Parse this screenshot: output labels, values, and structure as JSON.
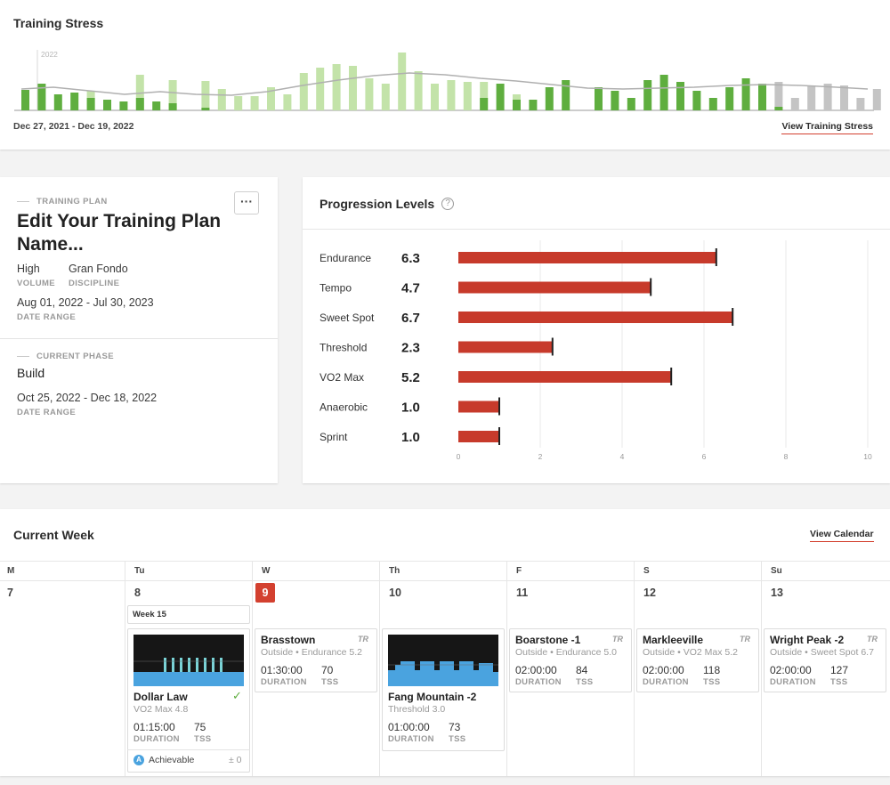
{
  "training_stress": {
    "title": "Training Stress",
    "year_marker": "2022",
    "date_range": "Dec 27, 2021 - Dec 19, 2022",
    "view_link": "View Training Stress"
  },
  "colors": {
    "accent": "#d3402f",
    "completed": "#5fae3f",
    "planned": "#c3e3a9",
    "future": "#c4c4c4",
    "curve": "#b0b0b0"
  },
  "plan": {
    "section_label": "TRAINING PLAN",
    "menu_label": "···",
    "name": "Edit Your Training Plan Name...",
    "volume": "High",
    "volume_label": "VOLUME",
    "discipline": "Gran Fondo",
    "discipline_label": "DISCIPLINE",
    "date_range": "Aug 01, 2022 - Jul 30, 2023",
    "date_range_label": "DATE RANGE",
    "phase_label": "CURRENT PHASE",
    "phase": "Build",
    "phase_dates": "Oct 25, 2022 - Dec 18, 2022",
    "phase_dates_label": "DATE RANGE"
  },
  "progression": {
    "title": "Progression Levels",
    "help": "?",
    "levels": [
      {
        "name": "Endurance",
        "value": "6.3"
      },
      {
        "name": "Tempo",
        "value": "4.7"
      },
      {
        "name": "Sweet Spot",
        "value": "6.7"
      },
      {
        "name": "Threshold",
        "value": "2.3"
      },
      {
        "name": "VO2 Max",
        "value": "5.2"
      },
      {
        "name": "Anaerobic",
        "value": "1.0"
      },
      {
        "name": "Sprint",
        "value": "1.0"
      }
    ],
    "ticks": [
      "0",
      "2",
      "4",
      "6",
      "8",
      "10"
    ]
  },
  "chart_data": {
    "type": "bar",
    "orientation": "horizontal",
    "categories": [
      "Endurance",
      "Tempo",
      "Sweet Spot",
      "Threshold",
      "VO2 Max",
      "Anaerobic",
      "Sprint"
    ],
    "values": [
      6.3,
      4.7,
      6.7,
      2.3,
      5.2,
      1.0,
      1.0
    ],
    "xlim": [
      0,
      10
    ],
    "xticks": [
      0,
      2,
      4,
      6,
      8,
      10
    ],
    "grid": true,
    "color": "#c73a2b"
  },
  "week": {
    "title": "Current Week",
    "view_link": "View Calendar",
    "days": [
      {
        "abbr": "M",
        "num": "7"
      },
      {
        "abbr": "Tu",
        "num": "8"
      },
      {
        "abbr": "W",
        "num": "9"
      },
      {
        "abbr": "Th",
        "num": "10"
      },
      {
        "abbr": "F",
        "num": "11"
      },
      {
        "abbr": "S",
        "num": "12"
      },
      {
        "abbr": "Su",
        "num": "13"
      }
    ],
    "week_label": "Week 15",
    "duration_label": "DURATION",
    "tss_label": "TSS",
    "tr_badge": "TR",
    "workouts": [
      {
        "name": "Dollar Law",
        "sub": "VO2 Max 4.8",
        "duration": "01:15:00",
        "tss": "75",
        "status": "Achievable",
        "status_icon": "A",
        "delta": "± 0",
        "check": "✓"
      },
      {
        "name": "Brasstown",
        "sub": "Outside • Endurance 5.2",
        "duration": "01:30:00",
        "tss": "70"
      },
      {
        "name": "Fang Mountain -2",
        "sub": "Threshold 3.0",
        "duration": "01:00:00",
        "tss": "73"
      },
      {
        "name": "Boarstone -1",
        "sub": "Outside • Endurance 5.0",
        "duration": "02:00:00",
        "tss": "84"
      },
      {
        "name": "Markleeville",
        "sub": "Outside • VO2 Max 5.2",
        "duration": "02:00:00",
        "tss": "118"
      },
      {
        "name": "Wright Peak -2",
        "sub": "Outside • Sweet Spot 6.7",
        "duration": "02:00:00",
        "tss": "127"
      }
    ]
  }
}
